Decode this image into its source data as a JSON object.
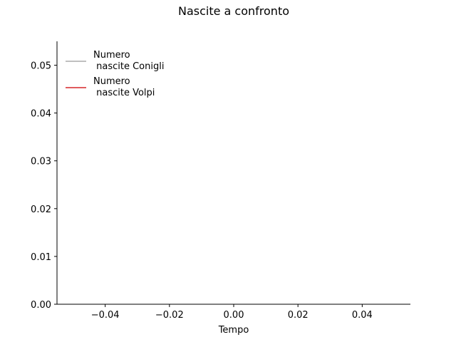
{
  "chart_data": {
    "type": "line",
    "title": "Nascite a confronto",
    "xlabel": "Tempo",
    "ylabel": "",
    "xlim": [
      -0.055,
      0.055
    ],
    "ylim": [
      0,
      0.055
    ],
    "xticks": [
      -0.04,
      -0.02,
      0.0,
      0.02,
      0.04
    ],
    "xtick_labels": [
      "−0.04",
      "−0.02",
      "0.00",
      "0.02",
      "0.04"
    ],
    "yticks": [
      0.0,
      0.01,
      0.02,
      0.03,
      0.04,
      0.05
    ],
    "ytick_labels": [
      "0.00",
      "0.01",
      "0.02",
      "0.03",
      "0.04",
      "0.05"
    ],
    "grid": false,
    "legend_position": "top-left",
    "series": [
      {
        "name": "Numero\n nascite Conigli",
        "legend_lines": [
          "Numero",
          " nascite Conigli"
        ],
        "color": "#aaaaaa",
        "x": [],
        "y": []
      },
      {
        "name": "Numero\n nascite Volpi",
        "legend_lines": [
          "Numero",
          " nascite Volpi"
        ],
        "color": "#d62728",
        "x": [],
        "y": []
      }
    ]
  }
}
